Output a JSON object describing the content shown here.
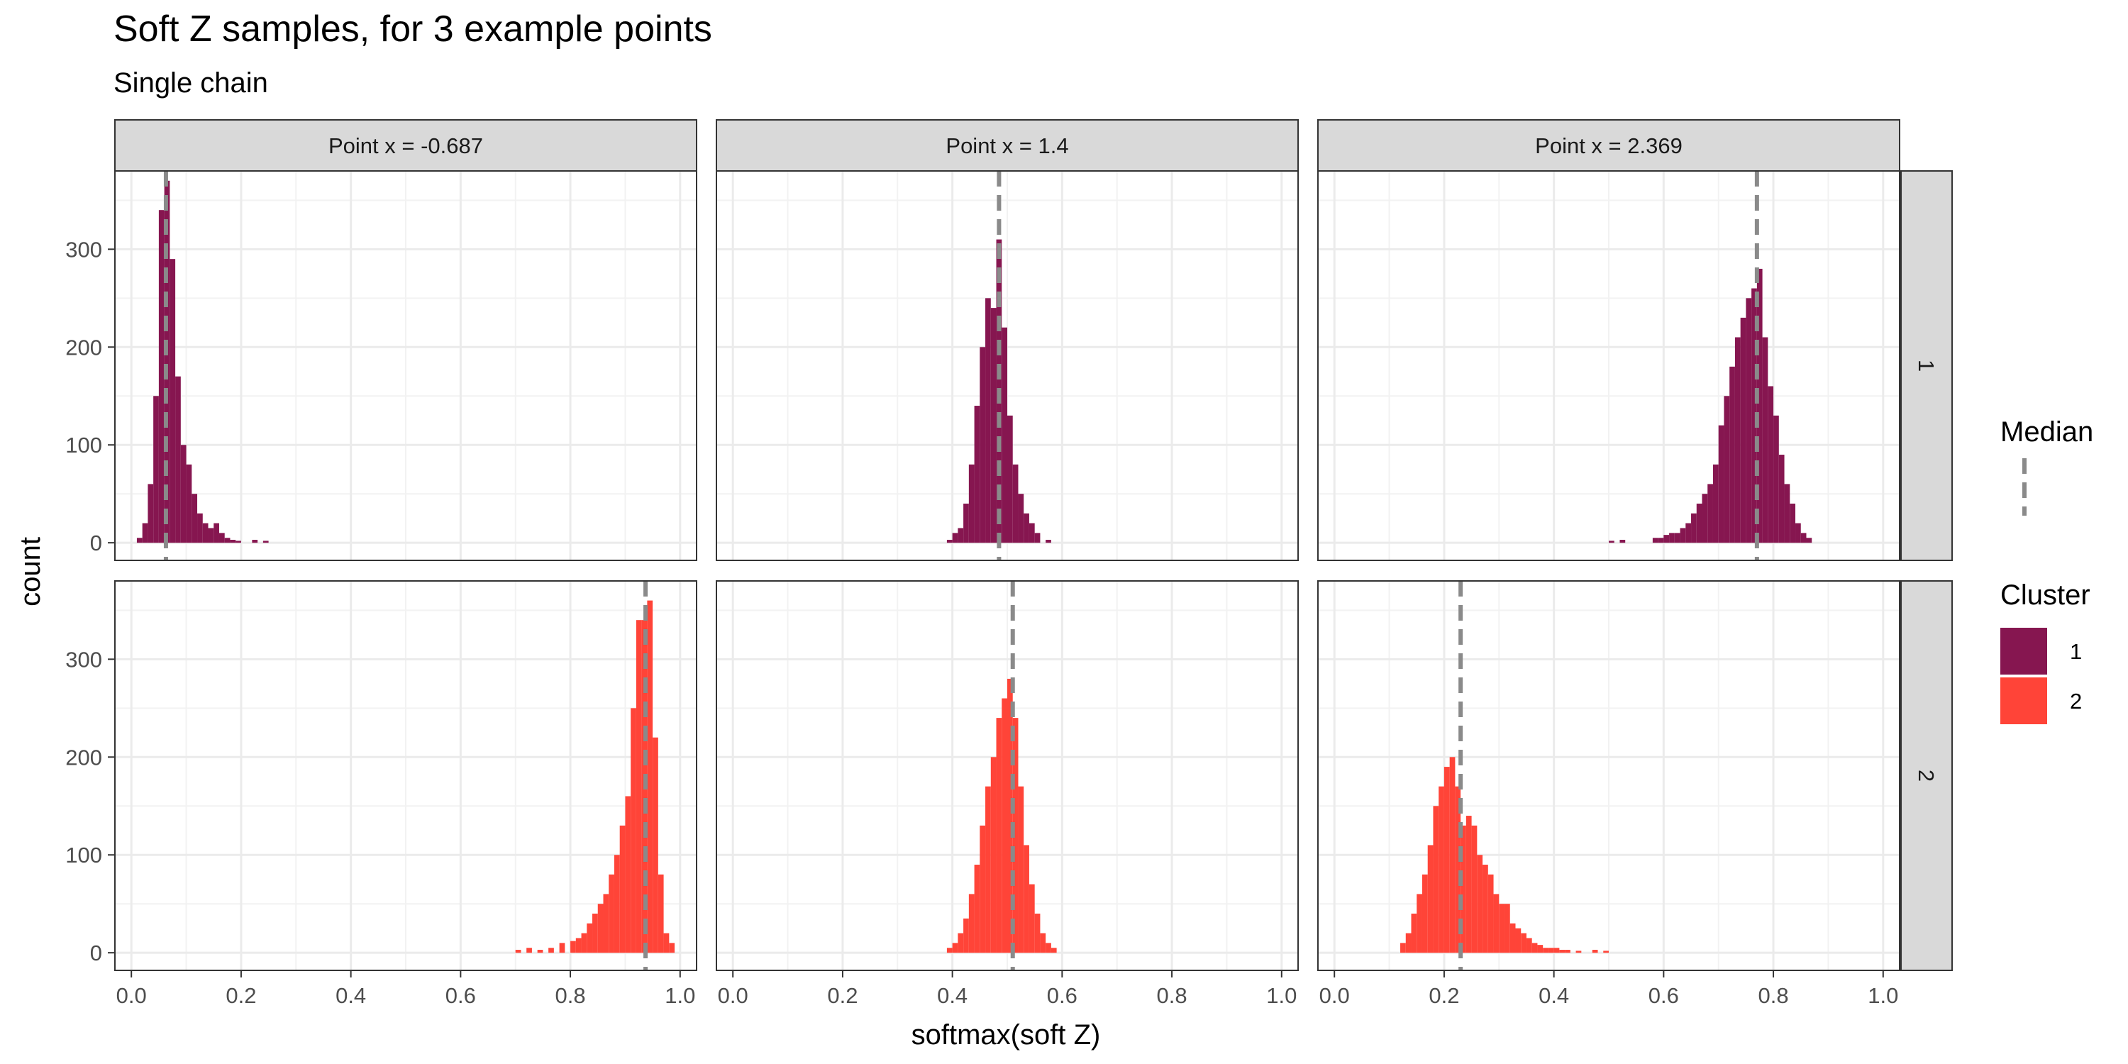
{
  "chart_data": {
    "type": "bar",
    "title": "Soft Z samples, for 3 example points",
    "subtitle": "Single chain",
    "xlabel": "softmax(soft Z)",
    "ylabel": "count",
    "xlim": [
      -0.03,
      1.03
    ],
    "ylim": [
      -18,
      380
    ],
    "x_ticks": [
      0.0,
      0.2,
      0.4,
      0.6,
      0.8,
      1.0
    ],
    "x_tick_labels": [
      "0.0",
      "0.2",
      "0.4",
      "0.6",
      "0.8",
      "1.0"
    ],
    "y_ticks": [
      0,
      100,
      200,
      300
    ],
    "y_tick_labels": [
      "0",
      "100",
      "200",
      "300"
    ],
    "grid": true,
    "bin_width": 0.01,
    "columns": [
      "Point x = -0.687",
      "Point x = 1.4",
      "Point x = 2.369"
    ],
    "rows": [
      "1",
      "2"
    ],
    "legend": {
      "position": "right",
      "median_title": "Median",
      "cluster_title": "Cluster",
      "entries": [
        {
          "label": "1",
          "color": "#861650"
        },
        {
          "label": "2",
          "color": "#ff4438"
        }
      ]
    },
    "colors": {
      "cluster_1": "#861650",
      "cluster_2": "#ff4438",
      "median_line": "#8a8a8a",
      "strip_fill": "#d9d9d9"
    },
    "panels": [
      {
        "column": "Point x = -0.687",
        "row": "1",
        "cluster": "1",
        "median": 0.063,
        "bins": [
          [
            0.015,
            5
          ],
          [
            0.025,
            20
          ],
          [
            0.035,
            60
          ],
          [
            0.045,
            150
          ],
          [
            0.055,
            340
          ],
          [
            0.065,
            370
          ],
          [
            0.075,
            290
          ],
          [
            0.085,
            170
          ],
          [
            0.095,
            100
          ],
          [
            0.105,
            80
          ],
          [
            0.115,
            50
          ],
          [
            0.125,
            30
          ],
          [
            0.135,
            20
          ],
          [
            0.145,
            15
          ],
          [
            0.155,
            20
          ],
          [
            0.165,
            10
          ],
          [
            0.175,
            5
          ],
          [
            0.185,
            3
          ],
          [
            0.195,
            2
          ],
          [
            0.225,
            3
          ],
          [
            0.245,
            2
          ]
        ]
      },
      {
        "column": "Point x = 1.4",
        "row": "1",
        "cluster": "1",
        "median": 0.485,
        "bins": [
          [
            0.395,
            3
          ],
          [
            0.405,
            10
          ],
          [
            0.415,
            15
          ],
          [
            0.425,
            40
          ],
          [
            0.435,
            80
          ],
          [
            0.445,
            140
          ],
          [
            0.455,
            200
          ],
          [
            0.465,
            250
          ],
          [
            0.475,
            240
          ],
          [
            0.485,
            310
          ],
          [
            0.495,
            220
          ],
          [
            0.505,
            130
          ],
          [
            0.515,
            80
          ],
          [
            0.525,
            50
          ],
          [
            0.535,
            30
          ],
          [
            0.545,
            20
          ],
          [
            0.555,
            10
          ],
          [
            0.575,
            3
          ]
        ]
      },
      {
        "column": "Point x = 2.369",
        "row": "1",
        "cluster": "1",
        "median": 0.77,
        "bins": [
          [
            0.505,
            2
          ],
          [
            0.525,
            3
          ],
          [
            0.585,
            5
          ],
          [
            0.595,
            5
          ],
          [
            0.605,
            8
          ],
          [
            0.615,
            10
          ],
          [
            0.625,
            10
          ],
          [
            0.635,
            15
          ],
          [
            0.645,
            20
          ],
          [
            0.655,
            30
          ],
          [
            0.665,
            40
          ],
          [
            0.675,
            50
          ],
          [
            0.685,
            60
          ],
          [
            0.695,
            80
          ],
          [
            0.705,
            120
          ],
          [
            0.715,
            150
          ],
          [
            0.725,
            180
          ],
          [
            0.735,
            210
          ],
          [
            0.745,
            230
          ],
          [
            0.755,
            250
          ],
          [
            0.765,
            260
          ],
          [
            0.775,
            280
          ],
          [
            0.785,
            210
          ],
          [
            0.795,
            160
          ],
          [
            0.805,
            130
          ],
          [
            0.815,
            90
          ],
          [
            0.825,
            60
          ],
          [
            0.835,
            40
          ],
          [
            0.845,
            20
          ],
          [
            0.855,
            10
          ],
          [
            0.865,
            5
          ]
        ]
      },
      {
        "column": "Point x = -0.687",
        "row": "2",
        "cluster": "2",
        "median": 0.937,
        "bins": [
          [
            0.705,
            3
          ],
          [
            0.725,
            5
          ],
          [
            0.745,
            3
          ],
          [
            0.765,
            5
          ],
          [
            0.785,
            10
          ],
          [
            0.805,
            12
          ],
          [
            0.815,
            15
          ],
          [
            0.825,
            20
          ],
          [
            0.835,
            30
          ],
          [
            0.845,
            40
          ],
          [
            0.855,
            50
          ],
          [
            0.865,
            60
          ],
          [
            0.875,
            80
          ],
          [
            0.885,
            100
          ],
          [
            0.895,
            130
          ],
          [
            0.905,
            160
          ],
          [
            0.915,
            250
          ],
          [
            0.925,
            340
          ],
          [
            0.935,
            340
          ],
          [
            0.945,
            360
          ],
          [
            0.955,
            220
          ],
          [
            0.965,
            80
          ],
          [
            0.975,
            20
          ],
          [
            0.985,
            10
          ]
        ]
      },
      {
        "column": "Point x = 1.4",
        "row": "2",
        "cluster": "2",
        "median": 0.51,
        "bins": [
          [
            0.395,
            5
          ],
          [
            0.405,
            10
          ],
          [
            0.415,
            20
          ],
          [
            0.425,
            35
          ],
          [
            0.435,
            60
          ],
          [
            0.445,
            90
          ],
          [
            0.455,
            130
          ],
          [
            0.465,
            170
          ],
          [
            0.475,
            200
          ],
          [
            0.485,
            240
          ],
          [
            0.495,
            260
          ],
          [
            0.505,
            280
          ],
          [
            0.515,
            240
          ],
          [
            0.525,
            170
          ],
          [
            0.535,
            110
          ],
          [
            0.545,
            70
          ],
          [
            0.555,
            40
          ],
          [
            0.565,
            20
          ],
          [
            0.575,
            10
          ],
          [
            0.585,
            5
          ]
        ]
      },
      {
        "column": "Point x = 2.369",
        "row": "2",
        "cluster": "2",
        "median": 0.23,
        "bins": [
          [
            0.125,
            10
          ],
          [
            0.135,
            20
          ],
          [
            0.145,
            40
          ],
          [
            0.155,
            60
          ],
          [
            0.165,
            80
          ],
          [
            0.175,
            110
          ],
          [
            0.185,
            150
          ],
          [
            0.195,
            170
          ],
          [
            0.205,
            190
          ],
          [
            0.215,
            200
          ],
          [
            0.225,
            170
          ],
          [
            0.235,
            130
          ],
          [
            0.245,
            140
          ],
          [
            0.255,
            130
          ],
          [
            0.265,
            100
          ],
          [
            0.275,
            90
          ],
          [
            0.285,
            80
          ],
          [
            0.295,
            60
          ],
          [
            0.305,
            50
          ],
          [
            0.315,
            50
          ],
          [
            0.325,
            30
          ],
          [
            0.335,
            25
          ],
          [
            0.345,
            20
          ],
          [
            0.355,
            15
          ],
          [
            0.365,
            10
          ],
          [
            0.375,
            8
          ],
          [
            0.385,
            5
          ],
          [
            0.395,
            5
          ],
          [
            0.405,
            5
          ],
          [
            0.415,
            3
          ],
          [
            0.425,
            3
          ],
          [
            0.445,
            2
          ],
          [
            0.475,
            3
          ],
          [
            0.495,
            2
          ]
        ]
      }
    ]
  }
}
